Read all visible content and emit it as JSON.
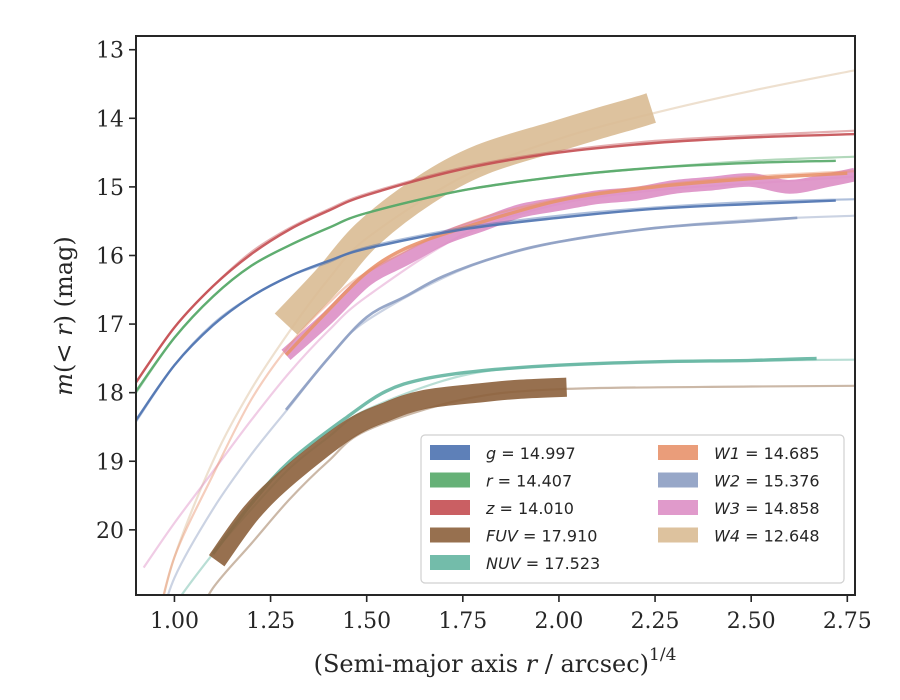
{
  "chart_data": {
    "type": "line",
    "xlabel": "(Semi-major axis r / arcsec)",
    "xlabel_var": "r",
    "xlabel_pre": "(Semi-major axis ",
    "xlabel_post": " / arcsec)",
    "xlabel_sup": "1/4",
    "ylabel_pre": "m",
    "ylabel_mid": "(< ",
    "ylabel_var": "r",
    "ylabel_post": ") (mag)",
    "xlim": [
      0.9,
      2.77
    ],
    "ylim": [
      20.95,
      12.8
    ],
    "y_inverted": true,
    "grid": false,
    "x_ticks": [
      1.0,
      1.25,
      1.5,
      1.75,
      2.0,
      2.25,
      2.5,
      2.75
    ],
    "x_tick_labels": [
      "1.00",
      "1.25",
      "1.50",
      "1.75",
      "2.00",
      "2.25",
      "2.50",
      "2.75"
    ],
    "y_ticks": [
      13,
      14,
      15,
      16,
      17,
      18,
      19,
      20
    ],
    "y_tick_labels": [
      "13",
      "14",
      "15",
      "16",
      "17",
      "18",
      "19",
      "20"
    ],
    "legend_placement": "lower-right",
    "series": [
      {
        "name": "g",
        "value_text": "= 14.997",
        "color": "#4c72b0",
        "band_width": 0.03,
        "model": [
          [
            0.9,
            18.42
          ],
          [
            1.0,
            17.6
          ],
          [
            1.1,
            17.0
          ],
          [
            1.2,
            16.6
          ],
          [
            1.3,
            16.3
          ],
          [
            1.4,
            16.1
          ],
          [
            1.5,
            15.88
          ],
          [
            1.75,
            15.6
          ],
          [
            2.0,
            15.42
          ],
          [
            2.25,
            15.3
          ],
          [
            2.5,
            15.22
          ],
          [
            2.77,
            15.18
          ]
        ],
        "data": [
          [
            0.9,
            18.4
          ],
          [
            1.0,
            17.6
          ],
          [
            1.1,
            17.02
          ],
          [
            1.2,
            16.6
          ],
          [
            1.3,
            16.3
          ],
          [
            1.4,
            16.08
          ],
          [
            1.5,
            15.9
          ],
          [
            1.75,
            15.62
          ],
          [
            2.0,
            15.45
          ],
          [
            2.25,
            15.32
          ],
          [
            2.5,
            15.25
          ],
          [
            2.72,
            15.2
          ]
        ]
      },
      {
        "name": "r",
        "value_text": "= 14.407",
        "color": "#55a868",
        "band_width": 0.03,
        "model": [
          [
            0.9,
            18.0
          ],
          [
            1.0,
            17.2
          ],
          [
            1.1,
            16.6
          ],
          [
            1.2,
            16.15
          ],
          [
            1.3,
            15.85
          ],
          [
            1.4,
            15.6
          ],
          [
            1.5,
            15.38
          ],
          [
            1.75,
            15.05
          ],
          [
            2.0,
            14.85
          ],
          [
            2.25,
            14.72
          ],
          [
            2.5,
            14.62
          ],
          [
            2.77,
            14.56
          ]
        ],
        "data": [
          [
            0.9,
            17.98
          ],
          [
            1.0,
            17.2
          ],
          [
            1.1,
            16.6
          ],
          [
            1.2,
            16.15
          ],
          [
            1.3,
            15.85
          ],
          [
            1.4,
            15.6
          ],
          [
            1.5,
            15.38
          ],
          [
            1.75,
            15.05
          ],
          [
            2.0,
            14.85
          ],
          [
            2.25,
            14.72
          ],
          [
            2.5,
            14.65
          ],
          [
            2.72,
            14.62
          ]
        ]
      },
      {
        "name": "z",
        "value_text": "= 14.010",
        "color": "#c44e52",
        "band_width": 0.03,
        "model": [
          [
            0.9,
            17.85
          ],
          [
            1.0,
            17.05
          ],
          [
            1.1,
            16.45
          ],
          [
            1.2,
            15.95
          ],
          [
            1.3,
            15.6
          ],
          [
            1.4,
            15.33
          ],
          [
            1.5,
            15.1
          ],
          [
            1.75,
            14.72
          ],
          [
            2.0,
            14.48
          ],
          [
            2.25,
            14.33
          ],
          [
            2.5,
            14.25
          ],
          [
            2.77,
            14.18
          ]
        ],
        "data": [
          [
            0.9,
            17.85
          ],
          [
            1.0,
            17.05
          ],
          [
            1.1,
            16.45
          ],
          [
            1.2,
            15.98
          ],
          [
            1.3,
            15.62
          ],
          [
            1.4,
            15.35
          ],
          [
            1.5,
            15.12
          ],
          [
            1.75,
            14.74
          ],
          [
            2.0,
            14.5
          ],
          [
            2.25,
            14.36
          ],
          [
            2.5,
            14.28
          ],
          [
            2.77,
            14.23
          ]
        ]
      },
      {
        "name": "FUV",
        "value_text": "= 17.910",
        "color": "#8c613c",
        "band_width": 0.28,
        "model": [
          [
            1.05,
            21.4
          ],
          [
            1.1,
            20.85
          ],
          [
            1.2,
            20.2
          ],
          [
            1.3,
            19.55
          ],
          [
            1.4,
            19.0
          ],
          [
            1.5,
            18.55
          ],
          [
            1.75,
            18.1
          ],
          [
            2.0,
            17.95
          ],
          [
            2.5,
            17.91
          ],
          [
            2.77,
            17.9
          ]
        ],
        "data": [
          [
            1.11,
            20.45
          ],
          [
            1.2,
            19.75
          ],
          [
            1.3,
            19.2
          ],
          [
            1.45,
            18.55
          ],
          [
            1.55,
            18.28
          ],
          [
            1.65,
            18.1
          ],
          [
            1.8,
            18.0
          ],
          [
            1.9,
            17.95
          ],
          [
            2.02,
            17.92
          ]
        ]
      },
      {
        "name": "NUV",
        "value_text": "= 17.523",
        "color": "#64b5a1",
        "band_width": 0.05,
        "model": [
          [
            0.9,
            22.0
          ],
          [
            1.0,
            21.1
          ],
          [
            1.1,
            20.35
          ],
          [
            1.2,
            19.7
          ],
          [
            1.3,
            19.1
          ],
          [
            1.4,
            18.65
          ],
          [
            1.5,
            18.25
          ],
          [
            1.75,
            17.75
          ],
          [
            2.0,
            17.6
          ],
          [
            2.25,
            17.55
          ],
          [
            2.5,
            17.53
          ],
          [
            2.77,
            17.52
          ]
        ],
        "data": [
          [
            1.1,
            20.35
          ],
          [
            1.2,
            19.62
          ],
          [
            1.3,
            19.0
          ],
          [
            1.45,
            18.35
          ],
          [
            1.55,
            17.98
          ],
          [
            1.65,
            17.8
          ],
          [
            1.8,
            17.68
          ],
          [
            2.0,
            17.6
          ],
          [
            2.25,
            17.55
          ],
          [
            2.5,
            17.53
          ],
          [
            2.67,
            17.5
          ]
        ]
      },
      {
        "name": "W1",
        "value_text": "= 14.685",
        "color": "#e8926c",
        "band_width": 0.05,
        "model": [
          [
            0.95,
            21.5
          ],
          [
            1.0,
            20.4
          ],
          [
            1.1,
            19.2
          ],
          [
            1.2,
            18.1
          ],
          [
            1.3,
            17.3
          ],
          [
            1.4,
            16.7
          ],
          [
            1.5,
            16.25
          ],
          [
            1.75,
            15.55
          ],
          [
            2.0,
            15.18
          ],
          [
            2.25,
            14.98
          ],
          [
            2.5,
            14.85
          ],
          [
            2.77,
            14.77
          ]
        ],
        "data": [
          [
            1.29,
            17.45
          ],
          [
            1.4,
            16.8
          ],
          [
            1.5,
            16.25
          ],
          [
            1.6,
            15.9
          ],
          [
            1.75,
            15.6
          ],
          [
            2.0,
            15.2
          ],
          [
            2.25,
            15.0
          ],
          [
            2.5,
            14.88
          ],
          [
            2.75,
            14.8
          ]
        ]
      },
      {
        "name": "W2",
        "value_text": "= 15.376",
        "color": "#8c9dc2",
        "band_width": 0.04,
        "model": [
          [
            0.95,
            21.6
          ],
          [
            1.0,
            20.7
          ],
          [
            1.1,
            19.7
          ],
          [
            1.2,
            18.9
          ],
          [
            1.3,
            18.2
          ],
          [
            1.4,
            17.5
          ],
          [
            1.5,
            16.95
          ],
          [
            1.75,
            16.2
          ],
          [
            2.0,
            15.8
          ],
          [
            2.25,
            15.6
          ],
          [
            2.5,
            15.48
          ],
          [
            2.77,
            15.42
          ]
        ],
        "data": [
          [
            1.29,
            18.25
          ],
          [
            1.4,
            17.5
          ],
          [
            1.5,
            16.9
          ],
          [
            1.6,
            16.6
          ],
          [
            1.7,
            16.3
          ],
          [
            1.85,
            16.0
          ],
          [
            2.0,
            15.8
          ],
          [
            2.25,
            15.6
          ],
          [
            2.5,
            15.5
          ],
          [
            2.62,
            15.45
          ]
        ]
      },
      {
        "name": "W3",
        "value_text": "= 14.858",
        "color": "#dd8fc5",
        "band_width": 0.2,
        "model": [
          [
            0.92,
            20.55
          ],
          [
            1.0,
            19.9
          ],
          [
            1.1,
            19.15
          ],
          [
            1.2,
            18.4
          ],
          [
            1.3,
            17.7
          ],
          [
            1.4,
            17.1
          ],
          [
            1.5,
            16.6
          ],
          [
            1.75,
            15.7
          ],
          [
            2.0,
            15.25
          ],
          [
            2.25,
            15.05
          ],
          [
            2.5,
            14.95
          ],
          [
            2.77,
            14.85
          ]
        ],
        "data": [
          [
            1.29,
            17.45
          ],
          [
            1.4,
            16.9
          ],
          [
            1.5,
            16.35
          ],
          [
            1.6,
            16.05
          ],
          [
            1.7,
            15.75
          ],
          [
            1.8,
            15.55
          ],
          [
            1.9,
            15.35
          ],
          [
            2.0,
            15.25
          ],
          [
            2.1,
            15.15
          ],
          [
            2.2,
            15.1
          ],
          [
            2.3,
            15.0
          ],
          [
            2.4,
            14.95
          ],
          [
            2.5,
            14.9
          ],
          [
            2.6,
            15.0
          ],
          [
            2.7,
            14.9
          ],
          [
            2.77,
            14.82
          ]
        ]
      },
      {
        "name": "W4",
        "value_text": "= 12.648",
        "color": "#d9bb94",
        "band_width": 0.45,
        "model": [
          [
            0.95,
            21.5
          ],
          [
            1.0,
            20.4
          ],
          [
            1.1,
            19.0
          ],
          [
            1.2,
            17.95
          ],
          [
            1.3,
            17.1
          ],
          [
            1.4,
            16.35
          ],
          [
            1.5,
            15.75
          ],
          [
            1.75,
            14.85
          ],
          [
            2.0,
            14.3
          ],
          [
            2.25,
            13.92
          ],
          [
            2.5,
            13.6
          ],
          [
            2.77,
            13.3
          ]
        ],
        "data": [
          [
            1.29,
            17.0
          ],
          [
            1.4,
            16.35
          ],
          [
            1.5,
            15.7
          ],
          [
            1.65,
            15.05
          ],
          [
            1.8,
            14.6
          ],
          [
            2.0,
            14.25
          ],
          [
            2.1,
            14.08
          ],
          [
            2.2,
            13.92
          ],
          [
            2.24,
            13.85
          ]
        ]
      }
    ]
  }
}
